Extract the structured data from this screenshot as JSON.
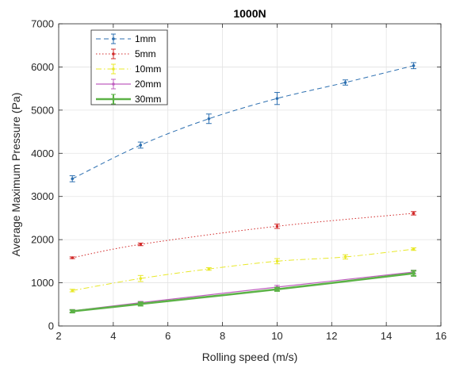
{
  "chart_data": {
    "type": "line",
    "title": "1000N",
    "xlabel": "Rolling speed (m/s)",
    "ylabel": "Average Maximum Pressure (Pa)",
    "xlim": [
      2,
      16
    ],
    "ylim": [
      0,
      7000
    ],
    "xticks": [
      2,
      4,
      6,
      8,
      10,
      12,
      14,
      16
    ],
    "yticks": [
      0,
      1000,
      2000,
      3000,
      4000,
      5000,
      6000,
      7000
    ],
    "grid": true,
    "legend_position": "top-left",
    "series": [
      {
        "name": "1mm",
        "color": "#2c6fb0",
        "line_style": "dashed",
        "line_width": 1,
        "points": [
          {
            "x": 2.5,
            "y": 3410,
            "err": 70
          },
          {
            "x": 5,
            "y": 4190,
            "err": 70
          },
          {
            "x": 7.5,
            "y": 4800,
            "err": 110
          },
          {
            "x": 10,
            "y": 5270,
            "err": 140
          },
          {
            "x": 12.5,
            "y": 5640,
            "err": 60
          },
          {
            "x": 15,
            "y": 6030,
            "err": 70
          }
        ]
      },
      {
        "name": "5mm",
        "color": "#d22b2b",
        "line_style": "dotted",
        "line_width": 1,
        "points": [
          {
            "x": 2.5,
            "y": 1580,
            "err": 20
          },
          {
            "x": 5,
            "y": 1890,
            "err": 30
          },
          {
            "x": 10,
            "y": 2310,
            "err": 50
          },
          {
            "x": 15,
            "y": 2610,
            "err": 40
          }
        ]
      },
      {
        "name": "10mm",
        "color": "#e8e82a",
        "line_style": "dashdot",
        "line_width": 1,
        "points": [
          {
            "x": 2.5,
            "y": 820,
            "err": 30
          },
          {
            "x": 5,
            "y": 1100,
            "err": 70
          },
          {
            "x": 7.5,
            "y": 1320,
            "err": 30
          },
          {
            "x": 10,
            "y": 1500,
            "err": 60
          },
          {
            "x": 12.5,
            "y": 1600,
            "err": 50
          },
          {
            "x": 15,
            "y": 1780,
            "err": 30
          }
        ]
      },
      {
        "name": "20mm",
        "color": "#bf5fbf",
        "line_style": "solid",
        "line_width": 1.2,
        "points": [
          {
            "x": 2.5,
            "y": 350,
            "err": 30
          },
          {
            "x": 5,
            "y": 540,
            "err": 30
          },
          {
            "x": 10,
            "y": 900,
            "err": 40
          },
          {
            "x": 15,
            "y": 1250,
            "err": 40
          }
        ]
      },
      {
        "name": "30mm",
        "color": "#5cb247",
        "line_style": "solid",
        "line_width": 2.6,
        "points": [
          {
            "x": 2.5,
            "y": 340,
            "err": 30
          },
          {
            "x": 5,
            "y": 510,
            "err": 40
          },
          {
            "x": 10,
            "y": 850,
            "err": 40
          },
          {
            "x": 15,
            "y": 1220,
            "err": 60
          }
        ]
      }
    ]
  }
}
